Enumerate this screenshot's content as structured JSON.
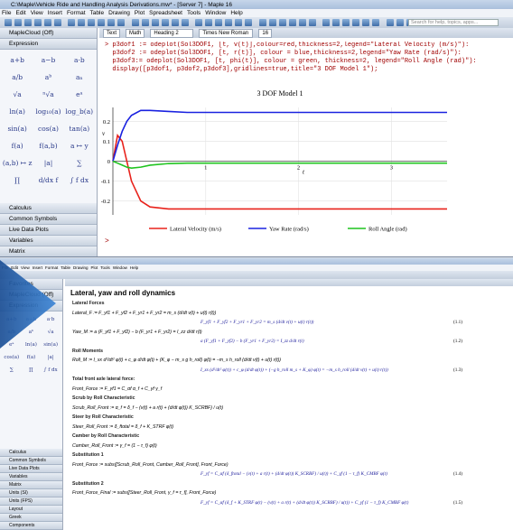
{
  "window1": {
    "title": "C:\\Maple\\Vehicle Ride and Handling Analysis Derivations.mw* - [Server 7] - Maple 16",
    "menu": [
      "File",
      "Edit",
      "View",
      "Insert",
      "Format",
      "Table",
      "Drawing",
      "Plot",
      "Spreadsheet",
      "Tools",
      "Window",
      "Help"
    ],
    "search": "Search for help, topics, apps...",
    "context": [
      "Text",
      "Math",
      "Heading 2",
      "Times New Roman",
      "16"
    ],
    "palettes_top": [
      "MapleCloud (Off)",
      "Expression"
    ],
    "symbols": [
      "a+b",
      "a−b",
      "a·b",
      "a/b",
      "aᵇ",
      "aₙ",
      "√a",
      "ⁿ√a",
      "eᵃ",
      "ln(a)",
      "log₁₀(a)",
      "log_b(a)",
      "sin(a)",
      "cos(a)",
      "tan(a)",
      "f(a)",
      "f(a,b)",
      "a ↦ y",
      "(a,b) ↦ z",
      "|a|",
      "∑",
      "∏",
      "d/dx f",
      "∫ f dx"
    ],
    "palettes_bottom": [
      "Calculus",
      "Common Symbols",
      "Live Data Plots",
      "Variables",
      "Matrix"
    ],
    "code": [
      "> p3dof1 := odeplot(Sol3DOF1, [t, v(t)],colour=red,thickness=2,legend=\"Lateral Velocity (m/s)\"):",
      "  p3dof2 := odeplot(Sol3DOF1, [t, r(t)], colour = blue,thickness=2,legend=\"Yaw Rate (rad/s)\"):",
      "  p3dof3:= odeplot(Sol3DOF1, [t, phi(t)], colour = green, thickness=2, legend=\"Roll Angle (rad)\"):",
      "  display([p3dof1, p3dof2,p3dof3],gridlines=true,title=\"3 DOF Model 1\");"
    ],
    "plot": {
      "type": "line",
      "title": "3 DOF Model 1",
      "x_label": "t",
      "y_label": "v",
      "x": [
        0,
        0.05,
        0.1,
        0.15,
        0.2,
        0.3,
        0.4,
        0.6,
        0.8,
        1,
        1.5,
        2,
        3,
        3.6
      ],
      "series": [
        {
          "name": "Lateral Velocity (m/s)",
          "color": "#e8221b",
          "values": [
            0,
            0.13,
            0.1,
            0.0,
            -0.1,
            -0.2,
            -0.23,
            -0.24,
            -0.24,
            -0.24,
            -0.24,
            -0.24,
            -0.24,
            -0.24
          ]
        },
        {
          "name": "Yaw Rate (rad/s)",
          "color": "#1a22e0",
          "values": [
            0,
            0.08,
            0.15,
            0.2,
            0.23,
            0.255,
            0.255,
            0.25,
            0.245,
            0.245,
            0.245,
            0.245,
            0.245,
            0.245
          ]
        },
        {
          "name": "Roll Angle (rad)",
          "color": "#1fc41f",
          "values": [
            0,
            -0.01,
            -0.02,
            -0.03,
            -0.035,
            -0.03,
            -0.02,
            -0.012,
            -0.01,
            -0.01,
            -0.01,
            -0.01,
            -0.01,
            -0.01
          ]
        }
      ],
      "xlim": [
        0,
        3.6
      ],
      "ylim": [
        -0.27,
        0.27
      ],
      "xticks": [
        1,
        2,
        3
      ],
      "yticks": [
        -0.2,
        -0.1,
        0,
        0.1,
        0.2
      ],
      "grid": true
    }
  },
  "window2": {
    "menu": [
      "File",
      "Edit",
      "View",
      "Insert",
      "Format",
      "Table",
      "Drawing",
      "Plot",
      "Tools",
      "Window",
      "Help"
    ],
    "palettes_top": [
      "Favorites",
      "MapleCloud (Off)",
      "Expression"
    ],
    "symbols": [
      "a+b",
      "a−b",
      "a·b",
      "a/b",
      "aᵇ",
      "√a",
      "eᵃ",
      "ln(a)",
      "sin(a)",
      "cos(a)",
      "f(a)",
      "|a|",
      "∑",
      "∏",
      "∫ f dx"
    ],
    "palettes_bottom": [
      "Calculus",
      "Common Symbols",
      "Live Data Plots",
      "Variables",
      "Matrix",
      "Units (SI)",
      "Units (FPS)",
      "Layout",
      "Greek",
      "Components"
    ],
    "heading": "Lateral, yaw and roll dynamics",
    "doc": [
      {
        "kind": "label",
        "text": "Lateral Forces"
      },
      {
        "kind": "math",
        "text": "Lateral_F := F_yf1 + F_yf2 + F_yr1 + F_yr2 = m_s (d/dt v(t) + u(t) r(t))"
      },
      {
        "kind": "output",
        "text": "F_yf1 + F_yf2 + F_yr1 + F_yr2 = m_s (d/dt v(t) + u(t) r(t))",
        "eq": "(1.1)"
      },
      {
        "kind": "math",
        "text": "Yaw_M := a (F_yf1 + F_yf2) − b (F_yr1 + F_yr2) = I_zz d/dt r(t)"
      },
      {
        "kind": "output",
        "text": "a (F_yf1 + F_yf2) − b (F_yr1 + F_yr2) = I_zz d/dt r(t)",
        "eq": "(1.2)"
      },
      {
        "kind": "label",
        "text": "Roll Moments"
      },
      {
        "kind": "math",
        "text": "Roll_M := I_xx d²/dt² φ(t) + c_φ d/dt φ(t) + (K_φ − m_s g h_roll) φ(t) = −m_s h_roll (d/dt v(t) + u(t) r(t))"
      },
      {
        "kind": "output",
        "text": "I_xx (d²/dt² φ(t)) + c_φ (d/dt φ(t)) + (−g h_roll m_s + K_φ) φ(t) = −m_s h_roll (d/dt v(t) + u(t) r(t))",
        "eq": "(1.3)"
      },
      {
        "kind": "label",
        "text": "Total front axle lateral force:"
      },
      {
        "kind": "math",
        "text": "Front_Force := F_yf1 = C_αf α_f + C_γf γ_f"
      },
      {
        "kind": "label",
        "text": "Scrub by Roll Characteristic"
      },
      {
        "kind": "math",
        "text": "Scrub_Roll_Front := α_f = δ_f − (v(t) + a r(t) + (d/dt φ(t)) K_SCRBF) / u(t)"
      },
      {
        "kind": "label",
        "text": "Steer by Roll Characteristic"
      },
      {
        "kind": "math",
        "text": "Steer_Roll_Front := δ_ftotal = δ_f + K_STRF φ(t)"
      },
      {
        "kind": "label",
        "text": "Camber by Roll Characteristic"
      },
      {
        "kind": "math",
        "text": "Camber_Roll_Front := γ_f = (1 − τ_f) φ(t)"
      },
      {
        "kind": "label",
        "text": "Substitution 1"
      },
      {
        "kind": "math",
        "text": "Front_Force := subs([Scrub_Roll_Front, Camber_Roll_Front], Front_Force)"
      },
      {
        "kind": "output",
        "text": "F_yf = C_αf (δ_ftotal − (v(t) + a r(t) + (d/dt φ(t)) K_SCRBF) / u(t)) + C_γf (1 − τ_f) K_CMBF φ(t)",
        "eq": "(1.4)"
      },
      {
        "kind": "label",
        "text": "Substitution 2"
      },
      {
        "kind": "math",
        "text": "Front_Force_Final := subs([Steer_Roll_Front, γ_f = τ_f], Front_Force)"
      },
      {
        "kind": "output",
        "text": "F_yf = C_αf (δ_f + K_STRF φ(t) − (v(t) + a r(t) + (d/dt φ(t)) K_SCRBF) / u(t)) + C_γf (1 − τ_f) K_CMBF φ(t)",
        "eq": "(1.5)"
      }
    ]
  }
}
